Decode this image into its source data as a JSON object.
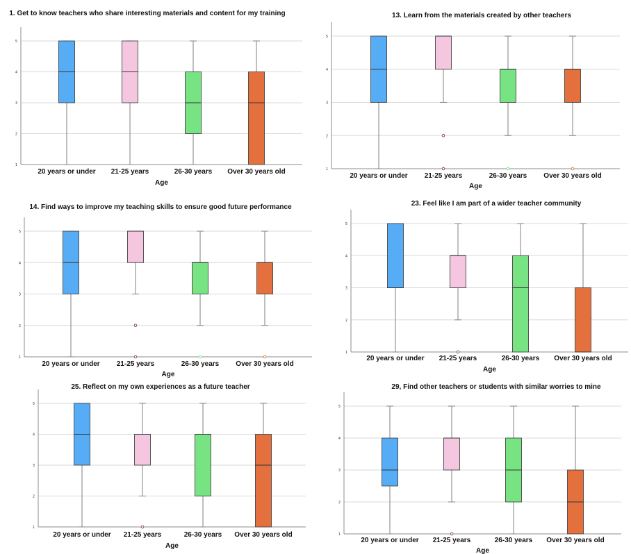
{
  "colors": {
    "20 years or under": "#57acf6",
    "21-25 years": "#f4c6e0",
    "26-30 years": "#77e383",
    "Over 30 years old": "#e3703d"
  },
  "chart_data": [
    {
      "type": "box",
      "title": "1. Get to know teachers who share interesting materials and content for my training",
      "xlabel": "Age",
      "ylabel": "",
      "ylim": [
        1,
        5
      ],
      "yticks": [
        "1",
        "2",
        "3",
        "4",
        "5"
      ],
      "grid": true,
      "categories": [
        "20 years or under",
        "21-25 years",
        "26-30 years",
        "Over 30 years old"
      ],
      "boxes": [
        {
          "min": 1,
          "q1": 3,
          "median": 4,
          "q3": 5,
          "max": 5,
          "outliers": []
        },
        {
          "min": 1,
          "q1": 3,
          "median": 4,
          "q3": 5,
          "max": 5,
          "outliers": []
        },
        {
          "min": 1,
          "q1": 2,
          "median": 3,
          "q3": 4,
          "max": 5,
          "outliers": []
        },
        {
          "min": 1,
          "q1": 1,
          "median": 3,
          "q3": 4,
          "max": 5,
          "outliers": []
        }
      ]
    },
    {
      "type": "box",
      "title": "13. Learn from the materials created by other teachers",
      "xlabel": "Age",
      "ylabel": "",
      "ylim": [
        1,
        5
      ],
      "yticks": [
        "1",
        "2",
        "3",
        "4",
        "5"
      ],
      "grid": true,
      "categories": [
        "20 years or under",
        "21-25 years",
        "26-30 years",
        "Over 30 years old"
      ],
      "boxes": [
        {
          "min": 1,
          "q1": 3,
          "median": 4,
          "q3": 5,
          "max": 5,
          "outliers": []
        },
        {
          "min": 3,
          "q1": 4,
          "median": 5,
          "q3": 5,
          "max": 5,
          "outliers": [
            2,
            1
          ]
        },
        {
          "min": 2,
          "q1": 3,
          "median": 4,
          "q3": 4,
          "max": 5,
          "outliers": [
            1
          ]
        },
        {
          "min": 2,
          "q1": 3,
          "median": 4,
          "q3": 4,
          "max": 5,
          "outliers": [
            1
          ]
        }
      ]
    },
    {
      "type": "box",
      "title": "14. Find ways to improve my teaching skills to ensure good future performance",
      "xlabel": "Age",
      "ylabel": "",
      "ylim": [
        1,
        5
      ],
      "yticks": [
        "1",
        "2",
        "3",
        "4",
        "5"
      ],
      "grid": true,
      "categories": [
        "20 years or under",
        "21-25 years",
        "26-30 years",
        "Over 30 years old"
      ],
      "boxes": [
        {
          "min": 1,
          "q1": 3,
          "median": 4,
          "q3": 5,
          "max": 5,
          "outliers": []
        },
        {
          "min": 3,
          "q1": 4,
          "median": 5,
          "q3": 5,
          "max": 5,
          "outliers": [
            2,
            1
          ]
        },
        {
          "min": 2,
          "q1": 3,
          "median": 4,
          "q3": 4,
          "max": 5,
          "outliers": [
            1
          ]
        },
        {
          "min": 2,
          "q1": 3,
          "median": 4,
          "q3": 4,
          "max": 5,
          "outliers": [
            1
          ]
        }
      ]
    },
    {
      "type": "box",
      "title": "23. Feel like I am part of a wider teacher community",
      "xlabel": "Age",
      "ylabel": "",
      "ylim": [
        1,
        5
      ],
      "yticks": [
        "1",
        "2",
        "3",
        "4",
        "5"
      ],
      "grid": true,
      "categories": [
        "20 years or under",
        "21-25 years",
        "26-30 years",
        "Over 30 years old"
      ],
      "boxes": [
        {
          "min": 1,
          "q1": 3,
          "median": 3,
          "q3": 5,
          "max": 5,
          "outliers": []
        },
        {
          "min": 2,
          "q1": 3,
          "median": 4,
          "q3": 4,
          "max": 5,
          "outliers": [
            1
          ]
        },
        {
          "min": 1,
          "q1": 1,
          "median": 3,
          "q3": 4,
          "max": 5,
          "outliers": []
        },
        {
          "min": 1,
          "q1": 1,
          "median": 1,
          "q3": 3,
          "max": 5,
          "outliers": []
        }
      ]
    },
    {
      "type": "box",
      "title": "25. Reflect on my own experiences as a future teacher",
      "xlabel": "Age",
      "ylabel": "",
      "ylim": [
        1,
        5
      ],
      "yticks": [
        "1",
        "2",
        "3",
        "4",
        "5"
      ],
      "grid": true,
      "categories": [
        "20 years or under",
        "21-25 years",
        "26-30 years",
        "Over 30 years old"
      ],
      "boxes": [
        {
          "min": 1,
          "q1": 3,
          "median": 4,
          "q3": 5,
          "max": 5,
          "outliers": []
        },
        {
          "min": 2,
          "q1": 3,
          "median": 4,
          "q3": 4,
          "max": 5,
          "outliers": [
            1
          ]
        },
        {
          "min": 1,
          "q1": 2,
          "median": 4,
          "q3": 4,
          "max": 5,
          "outliers": []
        },
        {
          "min": 1,
          "q1": 1,
          "median": 3,
          "q3": 4,
          "max": 5,
          "outliers": []
        }
      ]
    },
    {
      "type": "box",
      "title": "29, Find other teachers or students with similar worries to mine",
      "xlabel": "Age",
      "ylabel": "",
      "ylim": [
        1,
        5
      ],
      "yticks": [
        "1",
        "2",
        "3",
        "4",
        "5"
      ],
      "grid": true,
      "categories": [
        "20 years or under",
        "21-25 years",
        "26-30 years",
        "Over 30 years old"
      ],
      "boxes": [
        {
          "min": 1,
          "q1": 2.5,
          "median": 3,
          "q3": 4,
          "max": 5,
          "outliers": []
        },
        {
          "min": 2,
          "q1": 3,
          "median": 4,
          "q3": 4,
          "max": 5,
          "outliers": [
            1
          ]
        },
        {
          "min": 1,
          "q1": 2,
          "median": 3,
          "q3": 4,
          "max": 5,
          "outliers": []
        },
        {
          "min": 1,
          "q1": 1,
          "median": 2,
          "q3": 3,
          "max": 5,
          "outliers": []
        }
      ]
    }
  ]
}
